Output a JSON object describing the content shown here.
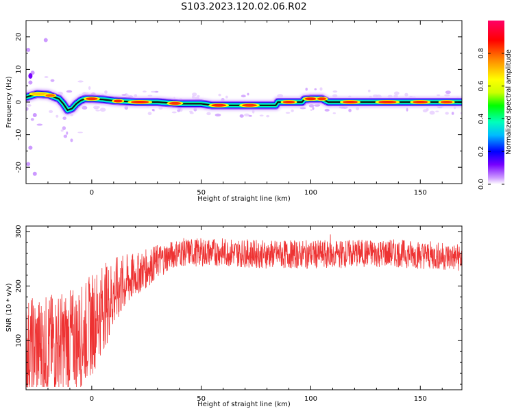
{
  "figure": {
    "title": "S103.2023.120.02.06.R02"
  },
  "chart_data": [
    {
      "type": "heatmap",
      "title": "",
      "xlabel": "Height of straight line (km)",
      "ylabel": "Frequency (Hz)",
      "xlim": [
        -30,
        169
      ],
      "ylim": [
        -25,
        25
      ],
      "xticks": [
        0,
        50,
        100,
        150
      ],
      "yticks": [
        -20,
        -10,
        0,
        10,
        20
      ],
      "ridge": {
        "x": [
          -30,
          -25,
          -20,
          -17,
          -15,
          -13,
          -11,
          -9,
          -7,
          -5,
          -3,
          0,
          5,
          10,
          15,
          20,
          30,
          40,
          50,
          55,
          60,
          70,
          80,
          84,
          85,
          90,
          96,
          97,
          100,
          105,
          108,
          110,
          130,
          150,
          169
        ],
        "y": [
          1.5,
          2.5,
          2.3,
          1.5,
          1.0,
          -0.5,
          -2.5,
          -2.0,
          -0.5,
          0.5,
          1.0,
          1.0,
          0.8,
          0.4,
          0.2,
          0.0,
          0.0,
          -0.5,
          -0.5,
          -1.0,
          -1.0,
          -1.0,
          -1.0,
          -1.0,
          0.0,
          0.0,
          0.0,
          0.8,
          1.0,
          1.0,
          0.0,
          0.0,
          0.0,
          0.0,
          0.0
        ]
      },
      "colorbar": {
        "label": "Normalized spectral amplitude",
        "range": [
          0,
          1
        ],
        "ticks": [
          "0.0",
          "0.2",
          "0.4",
          "0.6",
          "0.8"
        ],
        "colormap": [
          "#ffffff",
          "#cc99ff",
          "#7700ff",
          "#0000ff",
          "#00bbff",
          "#00ffbb",
          "#00ff00",
          "#ccff00",
          "#ffff00",
          "#ff8800",
          "#ff0000",
          "#ff0066"
        ]
      }
    },
    {
      "type": "line",
      "title": "",
      "xlabel": "Height of straight line (km)",
      "ylabel": "SNR (10 * v/v)",
      "xlim": [
        -30,
        169
      ],
      "ylim": [
        10,
        310
      ],
      "xticks": [
        0,
        50,
        100,
        150
      ],
      "yticks": [
        100,
        200,
        300
      ],
      "color": "#ee3333",
      "trend": {
        "x": [
          -30,
          -20,
          -10,
          -5,
          0,
          5,
          10,
          15,
          20,
          25,
          30,
          35,
          40,
          60,
          80,
          100,
          110,
          120,
          140,
          169
        ],
        "y": [
          85,
          90,
          100,
          105,
          130,
          160,
          185,
          205,
          220,
          232,
          245,
          255,
          262,
          262,
          258,
          258,
          258,
          260,
          260,
          252
        ]
      }
    }
  ]
}
